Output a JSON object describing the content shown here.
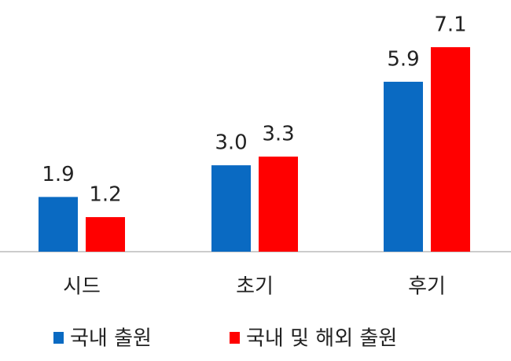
{
  "chart_data": {
    "type": "bar",
    "categories": [
      "시드",
      "초기",
      "후기"
    ],
    "series": [
      {
        "name": "국내 출원",
        "color": "#0a6ac2",
        "values": [
          1.9,
          3,
          5.9
        ],
        "value_labels": [
          "1.9",
          "3.0",
          "5.9"
        ]
      },
      {
        "name": "국내 및 해외 출원",
        "color": "#ff0000",
        "values": [
          1.2,
          3.3,
          7.1
        ],
        "value_labels": [
          "1.2",
          "3.3",
          "7.1"
        ]
      }
    ]
  }
}
